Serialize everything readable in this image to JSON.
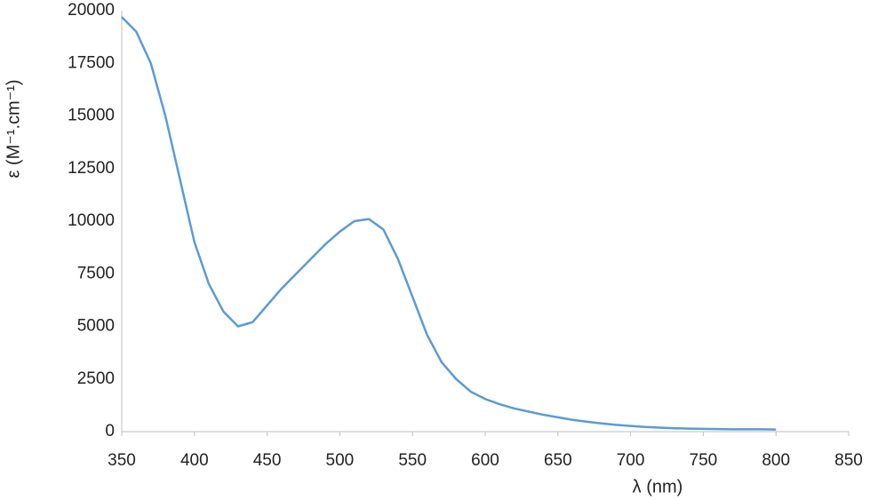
{
  "chart_data": {
    "type": "line",
    "x_label": "λ (nm)",
    "y_label": "ε (M⁻¹.cm⁻¹)",
    "x": [
      350,
      360,
      370,
      380,
      390,
      400,
      410,
      420,
      430,
      440,
      450,
      460,
      470,
      480,
      490,
      500,
      510,
      520,
      530,
      540,
      550,
      560,
      570,
      580,
      590,
      600,
      610,
      620,
      630,
      640,
      650,
      660,
      670,
      680,
      690,
      700,
      710,
      720,
      730,
      740,
      750,
      760,
      770,
      780,
      790,
      800
    ],
    "series": [
      {
        "color": "#5b9bd5",
        "values": [
          19700,
          19000,
          17500,
          15000,
          12000,
          9000,
          7000,
          5700,
          5000,
          5200,
          6000,
          6800,
          7500,
          8200,
          8900,
          9500,
          10000,
          10100,
          9600,
          8200,
          6400,
          4600,
          3300,
          2500,
          1900,
          1550,
          1300,
          1100,
          950,
          800,
          680,
          560,
          470,
          390,
          320,
          270,
          220,
          190,
          160,
          140,
          130,
          120,
          110,
          110,
          110,
          100
        ]
      }
    ],
    "xlim": [
      350,
      850
    ],
    "xticks": [
      350,
      400,
      450,
      500,
      550,
      600,
      650,
      700,
      750,
      800,
      850
    ],
    "ylim": [
      0,
      20000
    ],
    "yticks": [
      0,
      2500,
      5000,
      7500,
      10000,
      12500,
      15000,
      17500,
      20000
    ],
    "grid": false
  }
}
